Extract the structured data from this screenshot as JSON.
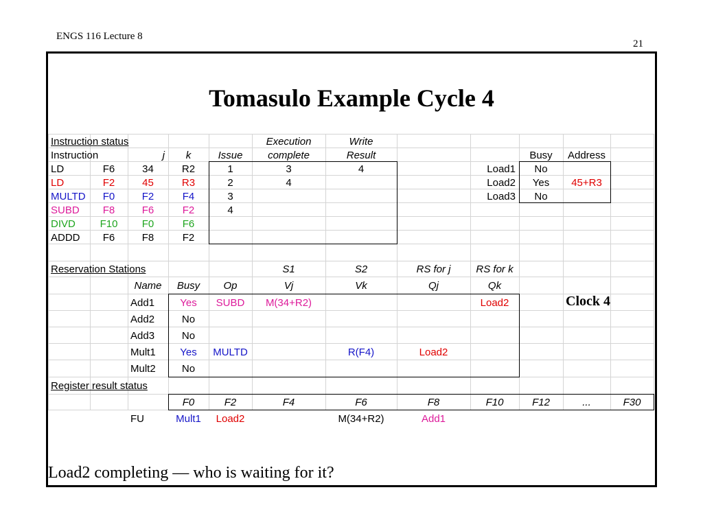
{
  "slide": {
    "header_left": "ENGS 116  Lecture 8",
    "page_number": "21",
    "title": "Tomasulo Example Cycle 4",
    "clock_label": "Clock 4",
    "caption": "Load2 completing — who is waiting for it?"
  },
  "colors": {
    "red": "#e00000",
    "blue": "#1515c8",
    "magenta": "#dd1a9a",
    "green": "#1ea51e",
    "grid": "#d4d4d4"
  },
  "instruction_status": {
    "section_label": "Instruction status ",
    "headers_row1": {
      "execution": "Execution",
      "write": "Write"
    },
    "headers_row2": {
      "instruction": "Instruction",
      "j": "j",
      "k": "k",
      "issue": "Issue",
      "complete": "complete",
      "result": "Result"
    },
    "rows": [
      {
        "op": "LD",
        "j": "F6",
        "k": "34",
        "issue": "1",
        "exec": "3",
        "write": "4",
        "color": "black"
      },
      {
        "op": "LD",
        "j": "F2",
        "k": "45",
        "issue": "2",
        "exec": "4",
        "write": "",
        "color": "red"
      },
      {
        "op": "MULTD",
        "j": "F0",
        "k": "F2",
        "issue": "3",
        "exec": "",
        "write": "",
        "color": "blue"
      },
      {
        "op": "SUBD",
        "j": "F8",
        "k": "F6",
        "issue": "4",
        "exec": "",
        "write": "",
        "color": "magenta"
      },
      {
        "op": "DIVD",
        "j": "F10",
        "k": "F0",
        "issue": "",
        "exec": "",
        "write": "",
        "color": "green"
      },
      {
        "op": "ADDD",
        "j": "F6",
        "k": "F8",
        "issue": "",
        "exec": "",
        "write": "",
        "color": "black"
      }
    ]
  },
  "load_buffers": {
    "headers": {
      "busy": "Busy",
      "address": "Address"
    },
    "rows": [
      {
        "name": "Load1",
        "busy": "No",
        "address": ""
      },
      {
        "name": "Load2",
        "busy": "Yes",
        "address": "45+R3"
      },
      {
        "name": "Load3",
        "busy": "No",
        "address": ""
      }
    ]
  },
  "reservation_stations": {
    "section_label": "Reservation Stations",
    "headers_row1": {
      "s1": "S1",
      "s2": "S2",
      "rsj": "RS for j",
      "rsk": "RS for k"
    },
    "headers_row2": {
      "name": "Name",
      "busy": "Busy",
      "op": "Op",
      "vj": "Vj",
      "vk": "Vk",
      "qj": "Qj",
      "qk": "Qk"
    },
    "rows": [
      {
        "name": "Add1",
        "busy": "Yes",
        "op": "SUBD",
        "vj": "M(34+R2)",
        "vk": "",
        "qj": "",
        "qk": "Load2",
        "color": "magenta"
      },
      {
        "name": "Add2",
        "busy": "No",
        "op": "",
        "vj": "",
        "vk": "",
        "qj": "",
        "qk": "",
        "color": "black"
      },
      {
        "name": "Add3",
        "busy": "No",
        "op": "",
        "vj": "",
        "vk": "",
        "qj": "",
        "qk": "",
        "color": "black"
      },
      {
        "name": "Mult1",
        "busy": "Yes",
        "op": "MULTD",
        "vj": "",
        "vk": "R(F4)",
        "qj": "Load2",
        "qk": "",
        "color": "blue"
      },
      {
        "name": "Mult2",
        "busy": "No",
        "op": "",
        "vj": "",
        "vk": "",
        "qj": "",
        "qk": "",
        "color": "black"
      }
    ]
  },
  "register_status": {
    "section_label": "Register result status",
    "registers": [
      "F0",
      "F2",
      "F4",
      "F6",
      "F8",
      "F10",
      "F12",
      "...",
      "F30"
    ],
    "fu_label": "FU",
    "values": [
      "Mult1",
      "Load2",
      "",
      "M(34+R2)",
      "Add1",
      "",
      "",
      "",
      ""
    ],
    "value_colors": [
      "blue",
      "red",
      "black",
      "black",
      "magenta",
      "black",
      "black",
      "black",
      "black"
    ]
  }
}
